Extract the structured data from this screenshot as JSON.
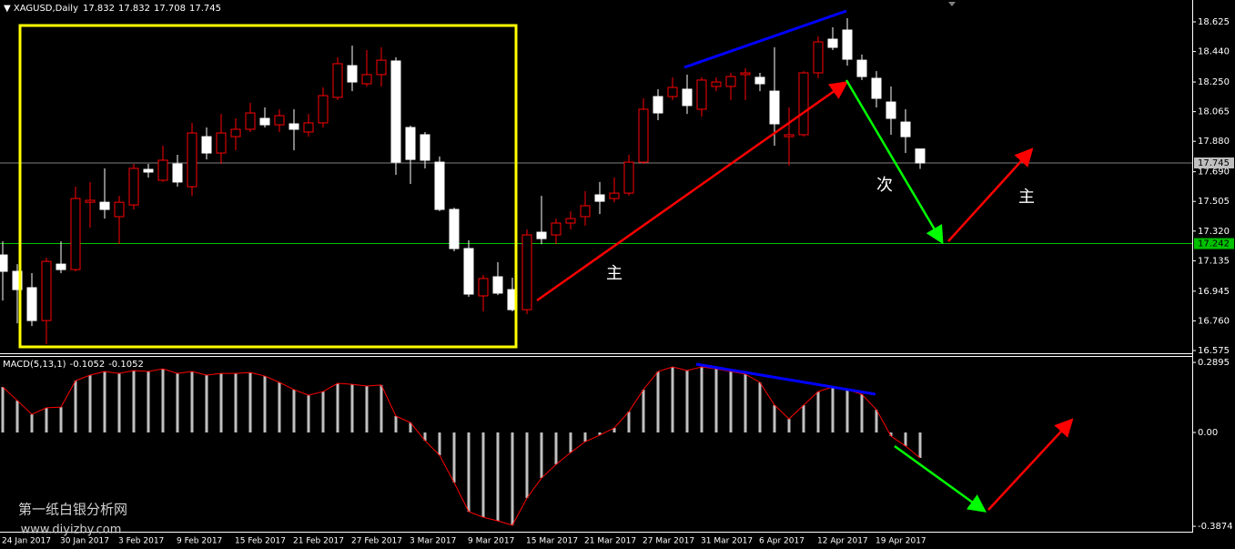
{
  "chart_data": [
    {
      "type": "candlestick",
      "symbol": "XAGUSD,Daily",
      "categories": [
        "24 Jan 2017",
        null,
        null,
        null,
        "30 Jan 2017",
        null,
        null,
        null,
        "3 Feb 2017",
        null,
        null,
        null,
        "9 Feb 2017",
        null,
        null,
        null,
        "15 Feb 2017",
        null,
        null,
        null,
        "21 Feb 2017",
        null,
        null,
        null,
        "27 Feb 2017",
        null,
        null,
        null,
        "3 Mar 2017",
        null,
        null,
        null,
        "9 Mar 2017",
        null,
        null,
        null,
        "15 Mar 2017",
        null,
        null,
        null,
        "21 Mar 2017",
        null,
        null,
        null,
        "27 Mar 2017",
        null,
        null,
        null,
        "31 Mar 2017",
        null,
        null,
        null,
        "6 Apr 2017",
        null,
        null,
        null,
        "12 Apr 2017",
        null,
        null,
        null,
        "19 Apr 2017",
        null,
        null,
        null
      ],
      "open": [
        17.171,
        17.069,
        16.967,
        16.762,
        17.114,
        17.08,
        17.5,
        17.5,
        17.41,
        17.483,
        17.705,
        17.637,
        17.739,
        17.597,
        17.909,
        17.807,
        17.909,
        17.955,
        18.023,
        17.983,
        17.989,
        17.938,
        17.995,
        18.154,
        18.352,
        18.239,
        18.296,
        18.381,
        17.966,
        17.921,
        17.75,
        17.455,
        17.211,
        16.916,
        17.035,
        16.955,
        16.83,
        17.313,
        17.296,
        17.37,
        17.41,
        17.546,
        17.523,
        17.557,
        17.75,
        18.159,
        18.159,
        18.205,
        18.08,
        18.222,
        18.222,
        18.296,
        18.279,
        18.193,
        17.909,
        17.921,
        18.307,
        18.517,
        18.574,
        18.386,
        18.273,
        18.125,
        18.0,
        17.832
      ],
      "high": [
        17.256,
        17.114,
        17.058,
        17.154,
        17.256,
        17.597,
        17.626,
        17.711,
        17.54,
        17.739,
        17.739,
        17.853,
        17.796,
        17.995,
        17.966,
        18.051,
        18.023,
        18.12,
        18.091,
        18.08,
        18.08,
        18.051,
        18.216,
        18.404,
        18.477,
        18.449,
        18.466,
        18.404,
        17.978,
        17.938,
        17.785,
        17.466,
        17.262,
        17.046,
        17.126,
        17.029,
        17.33,
        17.54,
        17.398,
        17.444,
        17.569,
        17.626,
        17.654,
        17.796,
        18.148,
        18.205,
        18.279,
        18.296,
        18.279,
        18.279,
        18.307,
        18.335,
        18.307,
        18.466,
        18.091,
        18.318,
        18.534,
        18.591,
        18.648,
        18.421,
        18.318,
        18.222,
        18.08,
        17.832
      ],
      "low": [
        16.887,
        16.745,
        16.728,
        16.615,
        17.058,
        17.069,
        17.342,
        17.398,
        17.239,
        17.455,
        17.654,
        17.626,
        17.597,
        17.54,
        17.767,
        17.739,
        17.824,
        17.938,
        17.966,
        17.938,
        17.824,
        17.909,
        17.966,
        18.137,
        18.193,
        18.222,
        18.222,
        17.671,
        17.614,
        17.711,
        17.444,
        17.194,
        16.91,
        16.819,
        16.921,
        16.819,
        16.802,
        17.239,
        17.239,
        17.33,
        17.353,
        17.426,
        17.5,
        17.54,
        17.739,
        18.012,
        18.137,
        18.051,
        18.034,
        18.193,
        18.137,
        18.137,
        18.193,
        17.853,
        17.728,
        17.909,
        18.273,
        18.449,
        18.352,
        18.262,
        18.091,
        17.921,
        17.807,
        17.708
      ],
      "close": [
        17.069,
        16.955,
        16.762,
        17.131,
        17.08,
        17.523,
        17.512,
        17.455,
        17.5,
        17.711,
        17.688,
        17.762,
        17.626,
        17.932,
        17.807,
        17.932,
        17.955,
        18.057,
        17.983,
        18.04,
        17.955,
        17.995,
        18.165,
        18.364,
        18.25,
        18.296,
        18.386,
        17.75,
        17.767,
        17.762,
        17.455,
        17.211,
        16.927,
        17.024,
        16.933,
        16.83,
        17.296,
        17.273,
        17.37,
        17.398,
        17.478,
        17.506,
        17.557,
        17.75,
        18.08,
        18.057,
        18.216,
        18.103,
        18.262,
        18.25,
        18.284,
        18.307,
        18.239,
        17.989,
        17.921,
        18.307,
        18.5,
        18.466,
        18.392,
        18.284,
        18.148,
        18.023,
        17.909,
        17.745
      ],
      "up_color": "#ff0000",
      "down_color": "#ffffff",
      "ylim": [
        16.558,
        18.75
      ],
      "yticks": [
        18.625,
        {
          "value": 18.44,
          "label": "18.440"
        },
        {
          "value": 18.25,
          "label": "18.250"
        },
        18.065,
        {
          "value": 17.88,
          "label": "17.880"
        },
        {
          "value": 17.69,
          "label": "17.690"
        },
        17.505,
        {
          "value": 17.32,
          "label": "17.320"
        },
        17.135,
        16.945,
        {
          "value": 16.76,
          "label": "16.760"
        },
        16.575
      ],
      "hline": 17.242,
      "hline_color": "#00c000",
      "annotations": [
        "主",
        "次",
        "主"
      ],
      "watermark": [
        "第一纸白银分析网",
        "www.diyizby.com"
      ]
    },
    {
      "type": "bar",
      "title": "MACD(5,13,1)",
      "values": [
        0.188,
        0.132,
        0.075,
        0.102,
        0.105,
        0.214,
        0.237,
        0.252,
        0.244,
        0.256,
        0.252,
        0.263,
        0.244,
        0.252,
        0.237,
        0.244,
        0.244,
        0.248,
        0.233,
        0.207,
        0.177,
        0.154,
        0.169,
        0.203,
        0.199,
        0.192,
        0.196,
        0.068,
        0.041,
        -0.034,
        -0.094,
        -0.207,
        -0.327,
        -0.35,
        -0.365,
        -0.383,
        -0.271,
        -0.188,
        -0.132,
        -0.083,
        -0.038,
        -0.011,
        0.019,
        0.086,
        0.177,
        0.252,
        0.271,
        0.256,
        0.271,
        0.263,
        0.252,
        0.241,
        0.207,
        0.113,
        0.056,
        0.113,
        0.169,
        0.188,
        0.177,
        0.158,
        0.094,
        -0.015,
        -0.056,
        -0.1052
      ],
      "color": "#c0c0c0",
      "signal_color": "#ff0000",
      "ylim": [
        -0.406,
        0.316
      ],
      "yticks": [
        0.2895,
        {
          "value": 0,
          "label": "0.00"
        },
        -0.3874
      ]
    }
  ]
}
